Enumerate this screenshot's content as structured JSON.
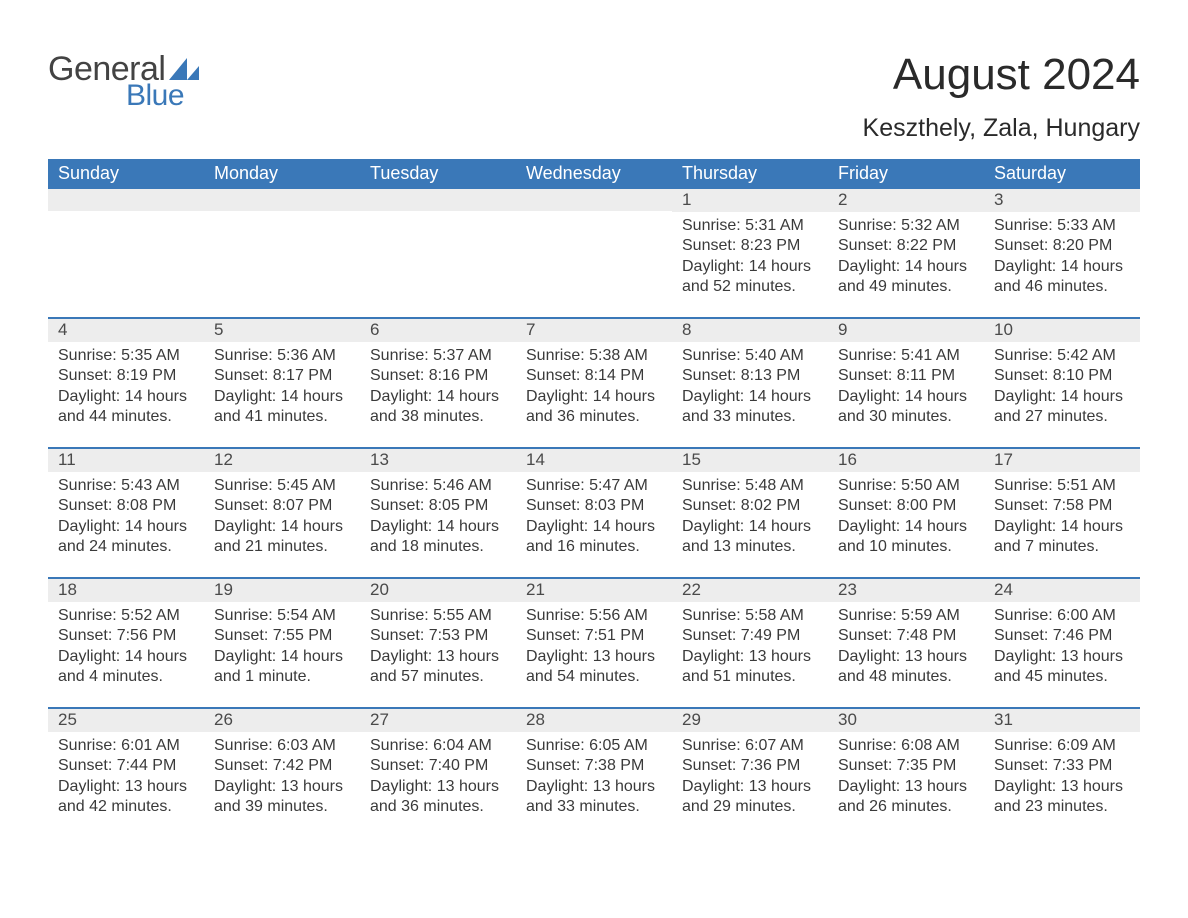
{
  "logo": {
    "text_general": "General",
    "text_blue": "Blue"
  },
  "title": "August 2024",
  "location": "Keszthely, Zala, Hungary",
  "colors": {
    "header_bg": "#3a78b8",
    "header_text": "#ffffff",
    "daynum_bg": "#ededed",
    "body_text": "#3a3a3a",
    "rule": "#3a78b8",
    "title_text": "#2a2a2a",
    "page_bg": "#ffffff"
  },
  "typography": {
    "title_fontsize": 44,
    "location_fontsize": 25,
    "weekday_fontsize": 18,
    "daynum_fontsize": 17,
    "body_fontsize": 16
  },
  "weekdays": [
    "Sunday",
    "Monday",
    "Tuesday",
    "Wednesday",
    "Thursday",
    "Friday",
    "Saturday"
  ],
  "weeks": [
    [
      {
        "n": "",
        "sunrise": "",
        "sunset": "",
        "daylight": ""
      },
      {
        "n": "",
        "sunrise": "",
        "sunset": "",
        "daylight": ""
      },
      {
        "n": "",
        "sunrise": "",
        "sunset": "",
        "daylight": ""
      },
      {
        "n": "",
        "sunrise": "",
        "sunset": "",
        "daylight": ""
      },
      {
        "n": "1",
        "sunrise": "Sunrise: 5:31 AM",
        "sunset": "Sunset: 8:23 PM",
        "daylight": "Daylight: 14 hours and 52 minutes."
      },
      {
        "n": "2",
        "sunrise": "Sunrise: 5:32 AM",
        "sunset": "Sunset: 8:22 PM",
        "daylight": "Daylight: 14 hours and 49 minutes."
      },
      {
        "n": "3",
        "sunrise": "Sunrise: 5:33 AM",
        "sunset": "Sunset: 8:20 PM",
        "daylight": "Daylight: 14 hours and 46 minutes."
      }
    ],
    [
      {
        "n": "4",
        "sunrise": "Sunrise: 5:35 AM",
        "sunset": "Sunset: 8:19 PM",
        "daylight": "Daylight: 14 hours and 44 minutes."
      },
      {
        "n": "5",
        "sunrise": "Sunrise: 5:36 AM",
        "sunset": "Sunset: 8:17 PM",
        "daylight": "Daylight: 14 hours and 41 minutes."
      },
      {
        "n": "6",
        "sunrise": "Sunrise: 5:37 AM",
        "sunset": "Sunset: 8:16 PM",
        "daylight": "Daylight: 14 hours and 38 minutes."
      },
      {
        "n": "7",
        "sunrise": "Sunrise: 5:38 AM",
        "sunset": "Sunset: 8:14 PM",
        "daylight": "Daylight: 14 hours and 36 minutes."
      },
      {
        "n": "8",
        "sunrise": "Sunrise: 5:40 AM",
        "sunset": "Sunset: 8:13 PM",
        "daylight": "Daylight: 14 hours and 33 minutes."
      },
      {
        "n": "9",
        "sunrise": "Sunrise: 5:41 AM",
        "sunset": "Sunset: 8:11 PM",
        "daylight": "Daylight: 14 hours and 30 minutes."
      },
      {
        "n": "10",
        "sunrise": "Sunrise: 5:42 AM",
        "sunset": "Sunset: 8:10 PM",
        "daylight": "Daylight: 14 hours and 27 minutes."
      }
    ],
    [
      {
        "n": "11",
        "sunrise": "Sunrise: 5:43 AM",
        "sunset": "Sunset: 8:08 PM",
        "daylight": "Daylight: 14 hours and 24 minutes."
      },
      {
        "n": "12",
        "sunrise": "Sunrise: 5:45 AM",
        "sunset": "Sunset: 8:07 PM",
        "daylight": "Daylight: 14 hours and 21 minutes."
      },
      {
        "n": "13",
        "sunrise": "Sunrise: 5:46 AM",
        "sunset": "Sunset: 8:05 PM",
        "daylight": "Daylight: 14 hours and 18 minutes."
      },
      {
        "n": "14",
        "sunrise": "Sunrise: 5:47 AM",
        "sunset": "Sunset: 8:03 PM",
        "daylight": "Daylight: 14 hours and 16 minutes."
      },
      {
        "n": "15",
        "sunrise": "Sunrise: 5:48 AM",
        "sunset": "Sunset: 8:02 PM",
        "daylight": "Daylight: 14 hours and 13 minutes."
      },
      {
        "n": "16",
        "sunrise": "Sunrise: 5:50 AM",
        "sunset": "Sunset: 8:00 PM",
        "daylight": "Daylight: 14 hours and 10 minutes."
      },
      {
        "n": "17",
        "sunrise": "Sunrise: 5:51 AM",
        "sunset": "Sunset: 7:58 PM",
        "daylight": "Daylight: 14 hours and 7 minutes."
      }
    ],
    [
      {
        "n": "18",
        "sunrise": "Sunrise: 5:52 AM",
        "sunset": "Sunset: 7:56 PM",
        "daylight": "Daylight: 14 hours and 4 minutes."
      },
      {
        "n": "19",
        "sunrise": "Sunrise: 5:54 AM",
        "sunset": "Sunset: 7:55 PM",
        "daylight": "Daylight: 14 hours and 1 minute."
      },
      {
        "n": "20",
        "sunrise": "Sunrise: 5:55 AM",
        "sunset": "Sunset: 7:53 PM",
        "daylight": "Daylight: 13 hours and 57 minutes."
      },
      {
        "n": "21",
        "sunrise": "Sunrise: 5:56 AM",
        "sunset": "Sunset: 7:51 PM",
        "daylight": "Daylight: 13 hours and 54 minutes."
      },
      {
        "n": "22",
        "sunrise": "Sunrise: 5:58 AM",
        "sunset": "Sunset: 7:49 PM",
        "daylight": "Daylight: 13 hours and 51 minutes."
      },
      {
        "n": "23",
        "sunrise": "Sunrise: 5:59 AM",
        "sunset": "Sunset: 7:48 PM",
        "daylight": "Daylight: 13 hours and 48 minutes."
      },
      {
        "n": "24",
        "sunrise": "Sunrise: 6:00 AM",
        "sunset": "Sunset: 7:46 PM",
        "daylight": "Daylight: 13 hours and 45 minutes."
      }
    ],
    [
      {
        "n": "25",
        "sunrise": "Sunrise: 6:01 AM",
        "sunset": "Sunset: 7:44 PM",
        "daylight": "Daylight: 13 hours and 42 minutes."
      },
      {
        "n": "26",
        "sunrise": "Sunrise: 6:03 AM",
        "sunset": "Sunset: 7:42 PM",
        "daylight": "Daylight: 13 hours and 39 minutes."
      },
      {
        "n": "27",
        "sunrise": "Sunrise: 6:04 AM",
        "sunset": "Sunset: 7:40 PM",
        "daylight": "Daylight: 13 hours and 36 minutes."
      },
      {
        "n": "28",
        "sunrise": "Sunrise: 6:05 AM",
        "sunset": "Sunset: 7:38 PM",
        "daylight": "Daylight: 13 hours and 33 minutes."
      },
      {
        "n": "29",
        "sunrise": "Sunrise: 6:07 AM",
        "sunset": "Sunset: 7:36 PM",
        "daylight": "Daylight: 13 hours and 29 minutes."
      },
      {
        "n": "30",
        "sunrise": "Sunrise: 6:08 AM",
        "sunset": "Sunset: 7:35 PM",
        "daylight": "Daylight: 13 hours and 26 minutes."
      },
      {
        "n": "31",
        "sunrise": "Sunrise: 6:09 AM",
        "sunset": "Sunset: 7:33 PM",
        "daylight": "Daylight: 13 hours and 23 minutes."
      }
    ]
  ]
}
